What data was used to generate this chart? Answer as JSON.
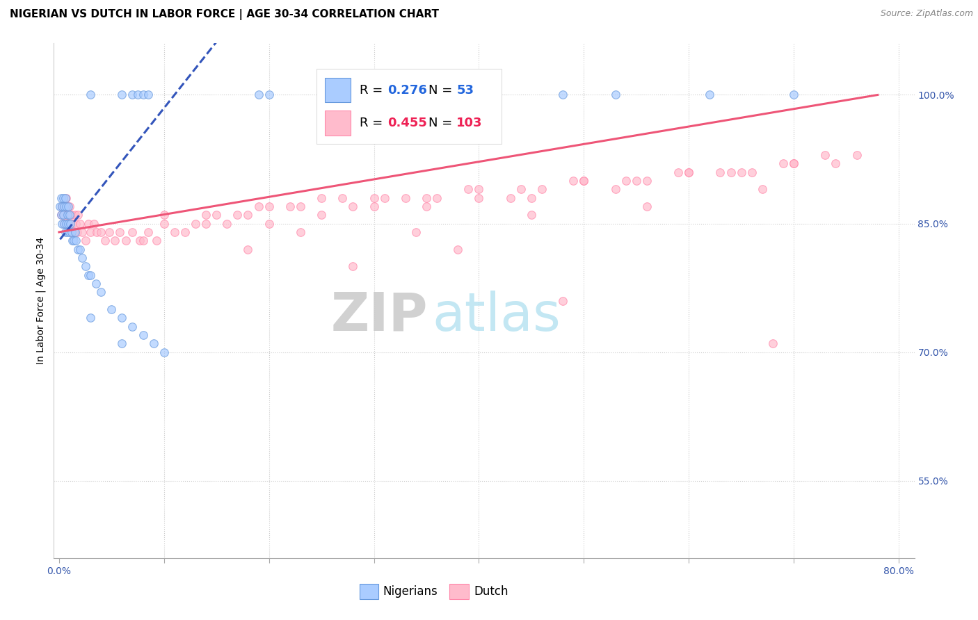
{
  "title": "NIGERIAN VS DUTCH IN LABOR FORCE | AGE 30-34 CORRELATION CHART",
  "source": "Source: ZipAtlas.com",
  "ylabel": "In Labor Force | Age 30-34",
  "xlim": [
    -0.005,
    0.815
  ],
  "ylim": [
    0.46,
    1.06
  ],
  "xtick_positions": [
    0.0,
    0.1,
    0.2,
    0.3,
    0.4,
    0.5,
    0.6,
    0.7,
    0.8
  ],
  "xticklabels": [
    "0.0%",
    "",
    "",
    "",
    "",
    "",
    "",
    "",
    "80.0%"
  ],
  "yticks_right": [
    0.55,
    0.7,
    0.85,
    1.0
  ],
  "ytick_labels_right": [
    "55.0%",
    "70.0%",
    "85.0%",
    "100.0%"
  ],
  "nigerian_fill": "#AACCFF",
  "nigerian_edge": "#6699DD",
  "dutch_fill": "#FFBBCC",
  "dutch_edge": "#FF88AA",
  "trendline_nigerian_color": "#3355BB",
  "trendline_dutch_color": "#EE5577",
  "R_nigerian": "0.276",
  "N_nigerian": "53",
  "R_dutch": "0.455",
  "N_dutch": "103",
  "legend_label_nigerian": "Nigerians",
  "legend_label_dutch": "Dutch",
  "watermark_zip": "ZIP",
  "watermark_atlas": "atlas",
  "grid_color": "#CCCCCC",
  "grid_style": ":",
  "title_fontsize": 11,
  "source_fontsize": 9,
  "tick_fontsize": 10,
  "legend_fontsize": 12,
  "stat_fontsize": 13,
  "ylabel_fontsize": 10,
  "watermark_fontsize_zip": 55,
  "watermark_fontsize_atlas": 55,
  "marker_size": 70,
  "marker_alpha": 0.7,
  "marker_linewidth": 0.8
}
